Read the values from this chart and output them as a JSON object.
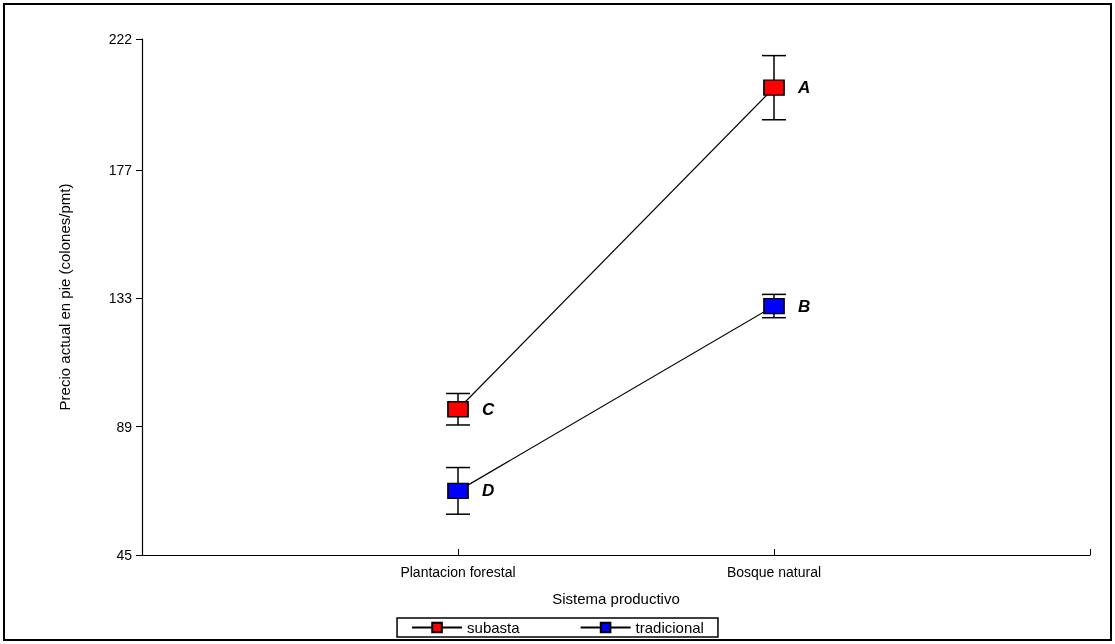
{
  "chart_data": {
    "type": "line",
    "xlabel": "Sistema productivo",
    "ylabel": "Precio actual en pie (colones/pmt)",
    "categories": [
      null,
      "Plantacion forestal",
      "Bosque natural",
      null
    ],
    "series": [
      {
        "name": "subasta",
        "color": "#ff0000",
        "values": [
          null,
          95,
          205.3,
          null
        ],
        "errors": [
          null,
          5.4,
          11,
          null
        ]
      },
      {
        "name": "tradicional",
        "color": "#0000ff",
        "values": [
          null,
          67,
          130.4,
          null
        ],
        "errors": [
          null,
          8,
          4,
          null
        ]
      }
    ],
    "ylim": [
      45,
      222
    ],
    "yticks": [
      45,
      89,
      133,
      177,
      222
    ],
    "annotations": [
      {
        "text": "A",
        "x": "Bosque natural",
        "y": 205.3
      },
      {
        "text": "B",
        "x": "Bosque natural",
        "y": 130.4
      },
      {
        "text": "C",
        "x": "Plantacion forestal",
        "y": 95
      },
      {
        "text": "D",
        "x": "Plantacion forestal",
        "y": 67
      }
    ],
    "marker": "square",
    "line_style": "solid",
    "grid": false,
    "legend": "bottom"
  }
}
